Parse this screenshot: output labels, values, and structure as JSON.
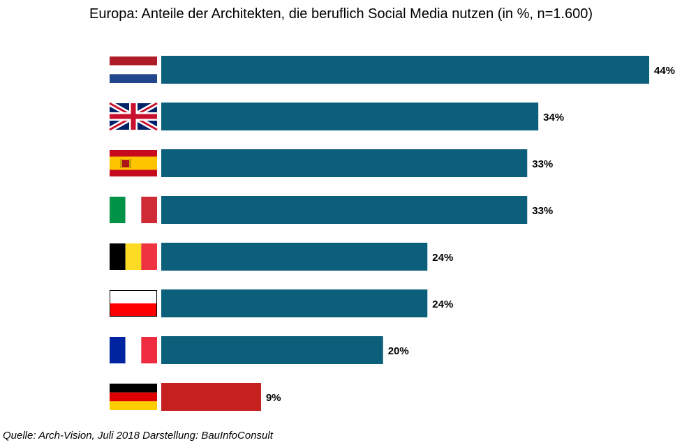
{
  "chart_data": {
    "type": "bar",
    "orientation": "horizontal",
    "title": "Europa: Anteile der Architekten, die beruflich Social Media nutzen (in %, n=1.600)",
    "categories": [
      "Niederlande",
      "Großbritannien",
      "Spanien",
      "Italien",
      "Belgien",
      "Polen",
      "Frankreich",
      "Deutschland"
    ],
    "values": [
      44,
      34,
      33,
      33,
      24,
      24,
      20,
      9
    ],
    "value_labels": [
      "44%",
      "34%",
      "33%",
      "33%",
      "24%",
      "24%",
      "20%",
      "9%"
    ],
    "category_icons": [
      "flag-netherlands-icon",
      "flag-uk-icon",
      "flag-spain-icon",
      "flag-italy-icon",
      "flag-belgium-icon",
      "flag-poland-icon",
      "flag-france-icon",
      "flag-germany-icon"
    ],
    "xlim": [
      0,
      44
    ],
    "grid": false,
    "legend": "none",
    "colors": {
      "default_bar": "#0b5f7a",
      "highlight_bar": "#c4211f",
      "highlight_index": 7
    }
  },
  "footer": {
    "source": "Quelle: Arch-Vision, Juli 2018 Darstellung: BauInfoConsult"
  }
}
